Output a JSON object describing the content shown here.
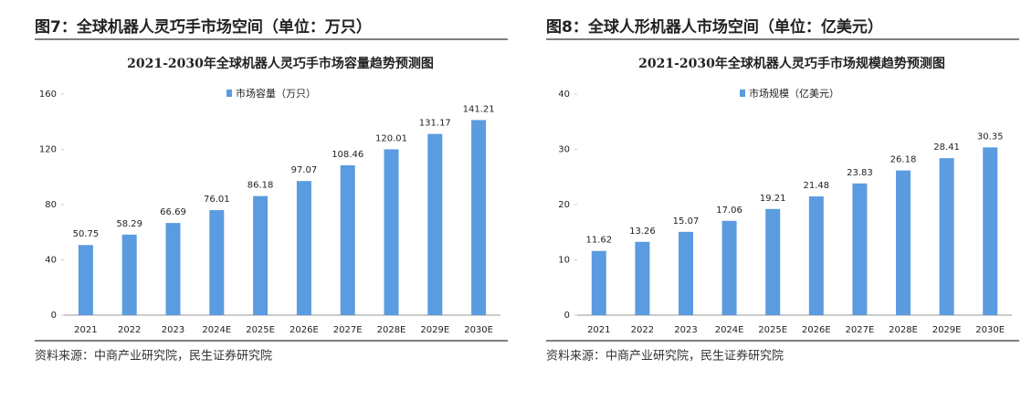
{
  "chart_data": [
    {
      "type": "bar",
      "caption": "图7：全球机器人灵巧手市场空间（单位：万只）",
      "title": "2021-2030年全球机器人灵巧手市场容量趋势预测图",
      "categories": [
        "2021",
        "2022",
        "2023",
        "2024E",
        "2025E",
        "2026E",
        "2027E",
        "2028E",
        "2029E",
        "2030E"
      ],
      "series": [
        {
          "name": "市场容量（万只）",
          "color": "#5b9be0",
          "values": [
            50.75,
            58.29,
            66.69,
            76.01,
            86.18,
            97.07,
            108.46,
            120.01,
            131.17,
            141.21
          ]
        }
      ],
      "ylim": [
        0,
        160
      ],
      "yticks": [
        0,
        40,
        80,
        120,
        160
      ],
      "grid": false,
      "source": "资料来源：中商产业研究院，民生证券研究院"
    },
    {
      "type": "bar",
      "caption": "图8：全球人形机器人市场空间（单位：亿美元）",
      "title": "2021-2030年全球机器人灵巧手市场规模趋势预测图",
      "categories": [
        "2021",
        "2022",
        "2023",
        "2024E",
        "2025E",
        "2026E",
        "2027E",
        "2028E",
        "2029E",
        "2030E"
      ],
      "series": [
        {
          "name": "市场规模（亿美元）",
          "color": "#5b9be0",
          "values": [
            11.62,
            13.26,
            15.07,
            17.06,
            19.21,
            21.48,
            23.83,
            26.18,
            28.41,
            30.35
          ]
        }
      ],
      "ylim": [
        0,
        40
      ],
      "yticks": [
        0,
        10,
        20,
        30,
        40
      ],
      "grid": false,
      "source": "资料来源：中商产业研究院，民生证券研究院"
    }
  ]
}
